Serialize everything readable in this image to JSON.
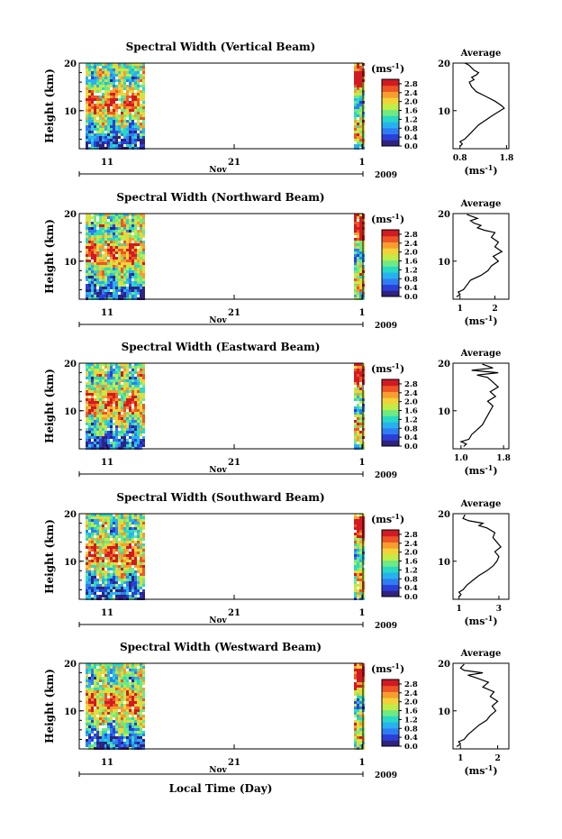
{
  "footer": {
    "xlabel": "Local Time (Day)"
  },
  "panels": [
    {
      "title": "Spectral Width (Vertical Beam)",
      "avg_xticks": [
        "0.8",
        "1.8"
      ],
      "avg_xlim": [
        0.65,
        1.85
      ]
    },
    {
      "title": "Spectral Width (Northward Beam)",
      "avg_xticks": [
        "1",
        "2"
      ],
      "avg_xlim": [
        0.8,
        2.4
      ]
    },
    {
      "title": "Spectral Width (Eastward Beam)",
      "avg_xticks": [
        "1.0",
        "1.8"
      ],
      "avg_xlim": [
        0.85,
        1.9
      ]
    },
    {
      "title": "Spectral Width (Southward Beam)",
      "avg_xticks": [
        "1",
        "3"
      ],
      "avg_xlim": [
        0.7,
        3.5
      ]
    },
    {
      "title": "Spectral Width (Westward Beam)",
      "avg_xticks": [
        "1",
        "2"
      ],
      "avg_xlim": [
        0.8,
        2.3
      ]
    }
  ],
  "common": {
    "ylabel": "Height (km)",
    "yticks": [
      "20",
      "10"
    ],
    "ylim": [
      2,
      20
    ],
    "xticks": [
      "11",
      "21",
      "1"
    ],
    "month": "Nov",
    "year": "2009",
    "colorbar_title": "(ms",
    "colorbar_exp": "-1",
    "colorbar_close": ")",
    "colorbar_ticks": [
      "2.8",
      "2.4",
      "2.0",
      "1.6",
      "1.2",
      "0.8",
      "0.4",
      "0.0"
    ],
    "avg_title": "Average",
    "avg_xlabel": "(ms",
    "avg_xlabel_exp": "-1",
    "avg_xlabel_close": ")"
  },
  "colors": {
    "scale": [
      "#30227e",
      "#2b3fd9",
      "#2f7df2",
      "#27b2ef",
      "#29d9c4",
      "#6ee983",
      "#c1ec47",
      "#f2d239",
      "#f79d2f",
      "#ee5526",
      "#d11a22"
    ],
    "line": "#000000"
  },
  "chart_data": [
    {
      "type": "heatmap",
      "title": "Spectral Width (Vertical Beam)",
      "ylabel": "Height (km)",
      "ylim": [
        2,
        20
      ],
      "x_ticks": [
        "11",
        "21",
        "1"
      ],
      "zlim": [
        0.0,
        3.0
      ],
      "data_segments_days": [
        [
          9.5,
          12.5
        ],
        [
          29.8,
          30.2
        ]
      ]
    },
    {
      "type": "line",
      "title": "Average",
      "ylim": [
        2,
        20
      ],
      "x_ticks": [
        "0.8",
        "1.8"
      ],
      "x": [
        0.8,
        0.85,
        0.8,
        0.9,
        1.0,
        1.2,
        1.5,
        1.75,
        1.7,
        1.55,
        1.35,
        1.15,
        1.05,
        1.0,
        1.1,
        1.05,
        1.15,
        1.2,
        1.1,
        1.05,
        1.0,
        0.95,
        0.9
      ],
      "y": [
        2.5,
        3.0,
        3.5,
        4.0,
        5.0,
        7.0,
        9.0,
        10.5,
        11.0,
        12.0,
        13.0,
        14.0,
        15.0,
        16.0,
        16.5,
        17.0,
        17.5,
        18.0,
        18.5,
        19.0,
        19.5,
        19.8,
        20.0
      ]
    },
    {
      "type": "heatmap",
      "title": "Spectral Width (Northward Beam)",
      "ylabel": "Height (km)",
      "ylim": [
        2,
        20
      ],
      "x_ticks": [
        "11",
        "21",
        "1"
      ],
      "zlim": [
        0.0,
        3.0
      ],
      "data_segments_days": [
        [
          9.5,
          12.5
        ],
        [
          29.8,
          30.2
        ]
      ]
    },
    {
      "type": "line",
      "title": "Average",
      "ylim": [
        2,
        20
      ],
      "x_ticks": [
        "1",
        "2"
      ],
      "x": [
        0.9,
        1.0,
        0.95,
        1.1,
        1.2,
        1.3,
        1.6,
        1.8,
        1.9,
        2.1,
        1.95,
        2.2,
        2.0,
        2.1,
        1.9,
        2.0,
        1.7,
        1.5,
        1.6,
        1.4,
        1.3,
        1.5,
        1.2
      ],
      "y": [
        2.5,
        3.0,
        3.5,
        4.0,
        5.0,
        6.0,
        7.0,
        8.0,
        9.0,
        10.0,
        11.0,
        12.0,
        13.0,
        14.0,
        15.0,
        16.0,
        16.5,
        17.0,
        17.5,
        18.0,
        18.5,
        19.0,
        19.8
      ]
    },
    {
      "type": "heatmap",
      "title": "Spectral Width (Eastward Beam)",
      "ylabel": "Height (km)",
      "ylim": [
        2,
        20
      ],
      "x_ticks": [
        "11",
        "21",
        "1"
      ],
      "zlim": [
        0.0,
        3.0
      ],
      "data_segments_days": [
        [
          9.5,
          12.5
        ],
        [
          29.8,
          30.2
        ]
      ]
    },
    {
      "type": "line",
      "title": "Average",
      "ylim": [
        2,
        20
      ],
      "x_ticks": [
        "1.0",
        "1.8"
      ],
      "x": [
        1.05,
        1.1,
        1.0,
        1.15,
        1.2,
        1.3,
        1.4,
        1.45,
        1.5,
        1.55,
        1.6,
        1.5,
        1.65,
        1.55,
        1.7,
        1.6,
        1.5,
        1.3,
        1.7,
        1.2,
        1.6,
        1.4
      ],
      "y": [
        2.5,
        3.0,
        3.5,
        4.0,
        5.0,
        6.0,
        7.0,
        8.0,
        9.0,
        10.0,
        11.0,
        12.0,
        13.0,
        14.0,
        15.0,
        16.0,
        17.0,
        17.5,
        18.0,
        18.5,
        19.0,
        19.8
      ]
    },
    {
      "type": "heatmap",
      "title": "Spectral Width (Southward Beam)",
      "ylabel": "Height (km)",
      "ylim": [
        2,
        20
      ],
      "x_ticks": [
        "11",
        "21",
        "1"
      ],
      "zlim": [
        0.0,
        3.0
      ],
      "data_segments_days": [
        [
          9.5,
          12.5
        ],
        [
          29.8,
          30.2
        ]
      ]
    },
    {
      "type": "line",
      "title": "Average",
      "ylim": [
        2,
        20
      ],
      "x_ticks": [
        "1",
        "3"
      ],
      "x": [
        1.0,
        1.1,
        1.0,
        1.2,
        1.4,
        1.7,
        2.0,
        2.4,
        2.7,
        2.9,
        3.0,
        2.8,
        3.1,
        2.9,
        2.7,
        2.8,
        2.4,
        2.0,
        2.2,
        1.5,
        1.2,
        1.3
      ],
      "y": [
        2.5,
        3.0,
        3.5,
        4.0,
        5.0,
        6.0,
        7.0,
        8.0,
        9.0,
        10.0,
        11.0,
        12.0,
        13.0,
        14.0,
        15.0,
        16.0,
        17.0,
        17.5,
        18.0,
        18.5,
        19.0,
        19.8
      ]
    },
    {
      "type": "heatmap",
      "title": "Spectral Width (Westward Beam)",
      "ylabel": "Height (km)",
      "ylim": [
        2,
        20
      ],
      "x_ticks": [
        "11",
        "21",
        "1"
      ],
      "zlim": [
        0.0,
        3.0
      ],
      "data_segments_days": [
        [
          9.5,
          12.5
        ],
        [
          29.8,
          30.2
        ]
      ]
    },
    {
      "type": "line",
      "title": "Average",
      "ylim": [
        2,
        20
      ],
      "x_ticks": [
        "1",
        "2"
      ],
      "x": [
        0.9,
        1.0,
        0.95,
        1.1,
        1.2,
        1.35,
        1.5,
        1.7,
        1.8,
        1.95,
        1.85,
        2.0,
        1.8,
        1.9,
        1.6,
        1.75,
        1.4,
        1.2,
        1.6,
        1.1,
        1.0,
        1.1
      ],
      "y": [
        2.5,
        3.0,
        3.5,
        4.0,
        5.0,
        6.0,
        7.0,
        8.0,
        9.0,
        10.0,
        11.0,
        12.0,
        13.0,
        14.0,
        15.0,
        16.0,
        17.0,
        17.5,
        18.0,
        18.5,
        19.0,
        19.8
      ]
    }
  ]
}
